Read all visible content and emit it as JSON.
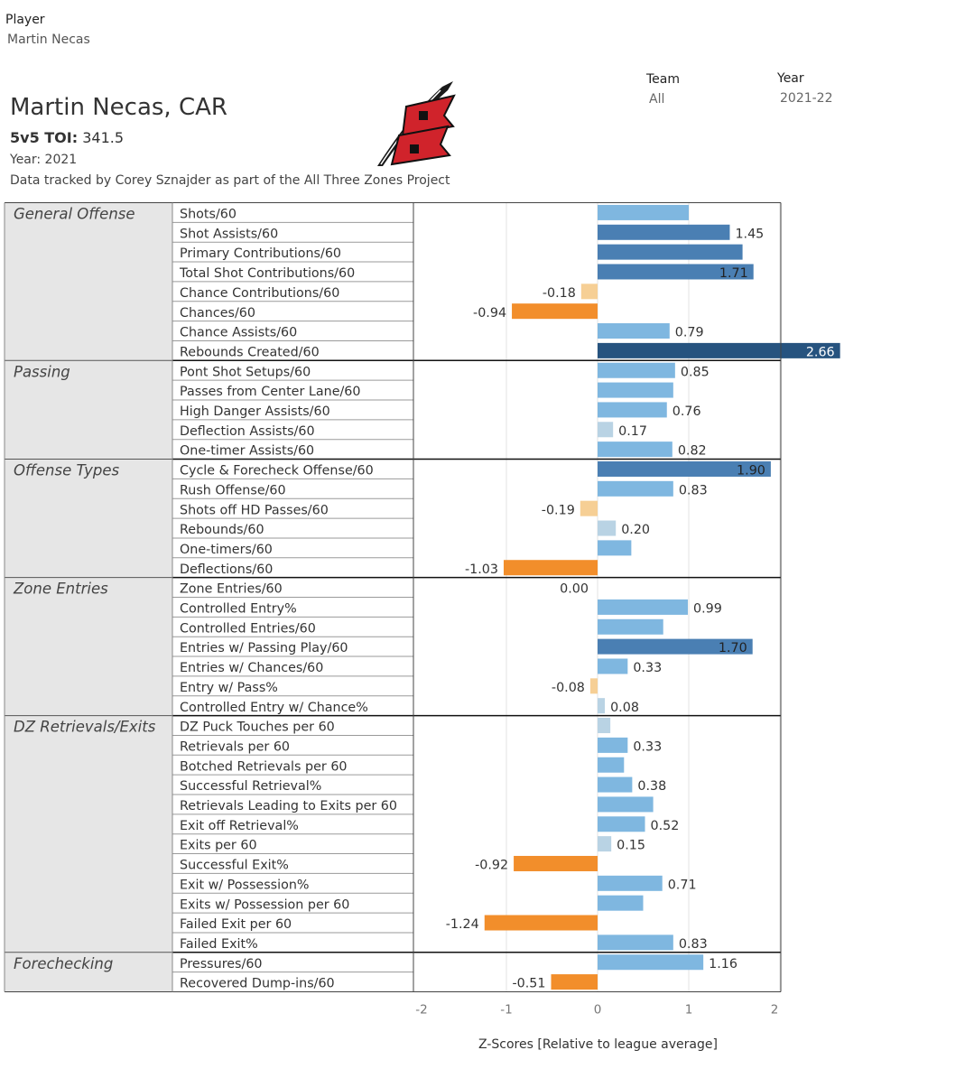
{
  "filters": {
    "player_label": "Player",
    "player_value": "Martin Necas",
    "team_label": "Team",
    "team_value": "All",
    "year_label": "Year",
    "year_value": "2021-22"
  },
  "header": {
    "title": "Martin Necas, CAR",
    "toi_label": "5v5 TOI:",
    "toi_value": "341.5",
    "year_line": "Year: 2021",
    "credit": "Data tracked by Corey Sznajder as part of the All Three Zones Project"
  },
  "colors": {
    "neg_strong": "#f28e2b",
    "neg_light": "#f6cf95",
    "pos_light": "#b9d3e4",
    "pos_mid": "#7fb7e0",
    "pos_strong": "#4a7fb3",
    "pos_darkest": "#26537f",
    "group_bg": "#e6e6e6"
  },
  "chart_data": {
    "type": "bar",
    "orientation": "horizontal",
    "xlabel": "Z-Scores [Relative to league average]",
    "xlim": [
      -2,
      2
    ],
    "xticks": [
      -2,
      -1,
      0,
      1,
      2
    ],
    "grid": true,
    "groups": [
      {
        "name": "General Offense",
        "metrics": [
          {
            "name": "Shots/60",
            "value": 1.0,
            "label": ""
          },
          {
            "name": "Shot Assists/60",
            "value": 1.45,
            "label": "1.45"
          },
          {
            "name": "Primary Contributions/60",
            "value": 1.59,
            "label": ""
          },
          {
            "name": "Total Shot Contributions/60",
            "value": 1.71,
            "label": "1.71"
          },
          {
            "name": "Chance Contributions/60",
            "value": -0.18,
            "label": "-0.18"
          },
          {
            "name": "Chances/60",
            "value": -0.94,
            "label": "-0.94"
          },
          {
            "name": "Chance Assists/60",
            "value": 0.79,
            "label": "0.79"
          },
          {
            "name": "Rebounds Created/60",
            "value": 2.66,
            "label": "2.66"
          }
        ]
      },
      {
        "name": "Passing",
        "metrics": [
          {
            "name": "Pont Shot Setups/60",
            "value": 0.85,
            "label": "0.85"
          },
          {
            "name": "Passes from Center Lane/60",
            "value": 0.83,
            "label": ""
          },
          {
            "name": "High Danger Assists/60",
            "value": 0.76,
            "label": "0.76"
          },
          {
            "name": "Deflection Assists/60",
            "value": 0.17,
            "label": "0.17"
          },
          {
            "name": "One-timer Assists/60",
            "value": 0.82,
            "label": "0.82"
          }
        ]
      },
      {
        "name": "Offense Types",
        "metrics": [
          {
            "name": "Cycle & Forecheck Offense/60",
            "value": 1.9,
            "label": "1.90"
          },
          {
            "name": "Rush Offense/60",
            "value": 0.83,
            "label": "0.83"
          },
          {
            "name": "Shots off HD Passes/60",
            "value": -0.19,
            "label": "-0.19"
          },
          {
            "name": "Rebounds/60",
            "value": 0.2,
            "label": "0.20"
          },
          {
            "name": "One-timers/60",
            "value": 0.37,
            "label": ""
          },
          {
            "name": "Deflections/60",
            "value": -1.03,
            "label": "-1.03"
          }
        ]
      },
      {
        "name": "Zone Entries",
        "metrics": [
          {
            "name": "Zone Entries/60",
            "value": 0.0,
            "label": "0.00"
          },
          {
            "name": "Controlled Entry%",
            "value": 0.99,
            "label": "0.99"
          },
          {
            "name": "Controlled Entries/60",
            "value": 0.72,
            "label": ""
          },
          {
            "name": "Entries w/ Passing Play/60",
            "value": 1.7,
            "label": "1.70"
          },
          {
            "name": "Entries w/ Chances/60",
            "value": 0.33,
            "label": "0.33"
          },
          {
            "name": "Entry w/ Pass%",
            "value": -0.08,
            "label": "-0.08"
          },
          {
            "name": "Controlled Entry w/ Chance%",
            "value": 0.08,
            "label": "0.08"
          }
        ]
      },
      {
        "name": "DZ Retrievals/Exits",
        "metrics": [
          {
            "name": "DZ Puck Touches per 60",
            "value": 0.14,
            "label": ""
          },
          {
            "name": "Retrievals per 60",
            "value": 0.33,
            "label": "0.33"
          },
          {
            "name": "Botched Retrievals per 60",
            "value": 0.29,
            "label": ""
          },
          {
            "name": "Successful Retrieval%",
            "value": 0.38,
            "label": "0.38"
          },
          {
            "name": "Retrievals Leading to Exits per 60",
            "value": 0.61,
            "label": ""
          },
          {
            "name": "Exit off Retrieval%",
            "value": 0.52,
            "label": "0.52"
          },
          {
            "name": "Exits per 60",
            "value": 0.15,
            "label": "0.15"
          },
          {
            "name": "Successful Exit%",
            "value": -0.92,
            "label": "-0.92"
          },
          {
            "name": "Exit w/ Possession%",
            "value": 0.71,
            "label": "0.71"
          },
          {
            "name": "Exits w/ Possession per 60",
            "value": 0.5,
            "label": ""
          },
          {
            "name": "Failed Exit per 60",
            "value": -1.24,
            "label": "-1.24"
          },
          {
            "name": "Failed Exit%",
            "value": 0.83,
            "label": "0.83"
          }
        ]
      },
      {
        "name": "Forechecking",
        "metrics": [
          {
            "name": "Pressures/60",
            "value": 1.16,
            "label": "1.16"
          },
          {
            "name": "Recovered Dump-ins/60",
            "value": -0.51,
            "label": "-0.51"
          }
        ]
      }
    ]
  }
}
